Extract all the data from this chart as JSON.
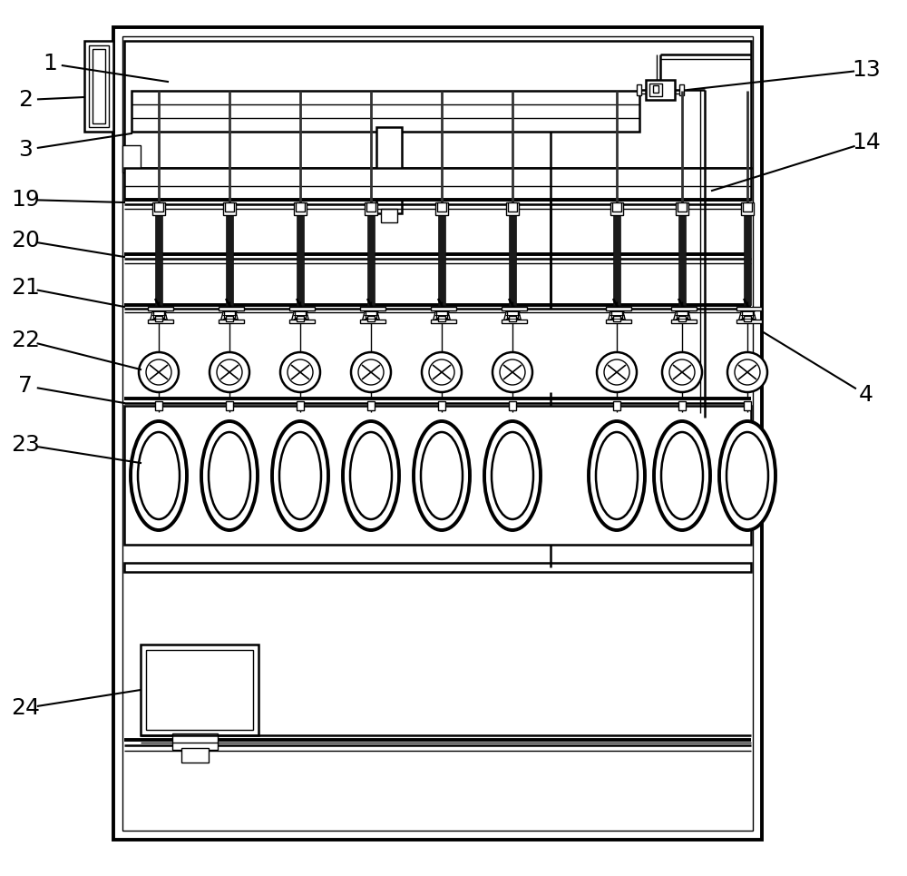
{
  "bg_color": "#ffffff",
  "n_pumps": 9,
  "label_fontsize": 18
}
